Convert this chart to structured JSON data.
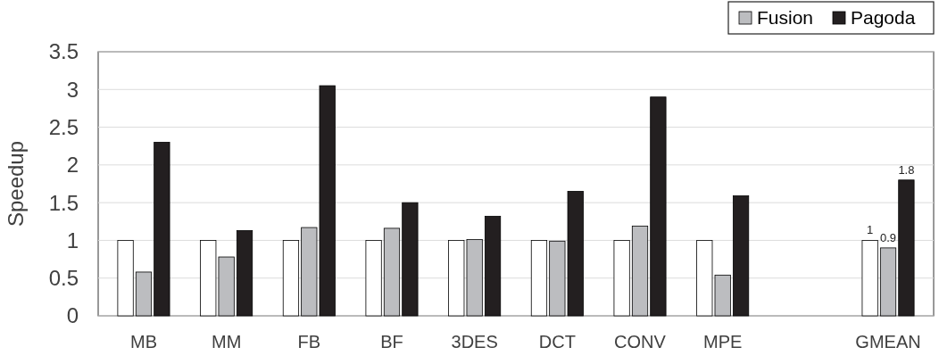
{
  "chart_data": {
    "type": "bar",
    "ylabel": "Speedup",
    "categories": [
      "MB",
      "MM",
      "FB",
      "BF",
      "3DES",
      "DCT",
      "CONV",
      "MPE",
      null,
      "GMEAN"
    ],
    "series": [
      {
        "color": "#ffffff",
        "values": [
          1,
          1,
          1,
          1,
          1,
          1,
          1,
          1,
          null,
          1
        ],
        "value_labels": [
          null,
          null,
          null,
          null,
          null,
          null,
          null,
          null,
          null,
          "1"
        ]
      },
      {
        "name": "Fusion",
        "color": "#bcbdc0",
        "values": [
          0.58,
          0.78,
          1.17,
          1.16,
          1.01,
          0.99,
          1.19,
          0.54,
          null,
          0.9
        ],
        "value_labels": [
          null,
          null,
          null,
          null,
          null,
          null,
          null,
          null,
          null,
          "0.9"
        ]
      },
      {
        "name": "Pagoda",
        "color": "#231f20",
        "values": [
          2.3,
          1.13,
          3.05,
          1.5,
          1.32,
          1.65,
          2.9,
          1.59,
          null,
          1.8
        ],
        "value_labels": [
          null,
          null,
          null,
          null,
          null,
          null,
          null,
          null,
          null,
          "1.8"
        ]
      }
    ],
    "ylim": [
      0,
      3.5
    ],
    "yticks": [
      0,
      0.5,
      1,
      1.5,
      2,
      2.5,
      3,
      3.5
    ],
    "grid": "y",
    "legend": "top right"
  }
}
